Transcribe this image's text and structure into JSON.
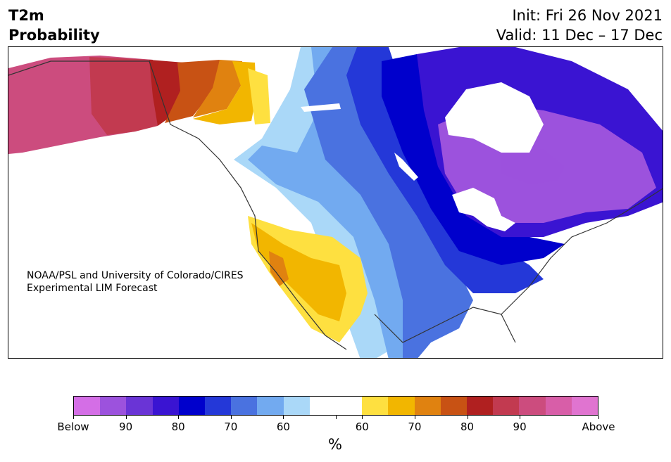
{
  "title": {
    "line1": "T2m",
    "line2": "Probability",
    "init": "Init: Fri 26 Nov 2021",
    "valid": "Valid: 11 Dec – 17 Dec"
  },
  "credit": {
    "line1": "NOAA/PSL and University of Colorado/CIRES",
    "line2": "Experimental LIM Forecast"
  },
  "legend": {
    "unit": "%",
    "colors": [
      "#d46ee6",
      "#9c52dd",
      "#6a34d6",
      "#3a14d2",
      "#0000cc",
      "#2438d8",
      "#4a72e0",
      "#72aaf0",
      "#aad8f8",
      "#ffffff",
      "#ffffff",
      "#fee040",
      "#f2b600",
      "#e08210",
      "#c85214",
      "#b02020",
      "#c23a50",
      "#cc4c7e",
      "#d85ea8",
      "#e074d0"
    ],
    "labels": [
      "Below",
      "90",
      "80",
      "70",
      "60",
      "60",
      "70",
      "80",
      "90",
      "Above"
    ]
  },
  "map": {
    "colors": {
      "below_90": "#9c52dd",
      "below_80": "#3a14d2",
      "below_70": "#0000cc",
      "below_60": "#2438d8",
      "below_50": "#4a72e0",
      "below_40": "#72aaf0",
      "below_30": "#aad8f8",
      "neutral": "#ffffff",
      "above_30": "#fee040",
      "above_40": "#f2b600",
      "above_50": "#e08210",
      "above_60": "#c85214",
      "above_70": "#b02020",
      "above_80": "#c23a50",
      "above_90": "#cc4c7e"
    }
  }
}
